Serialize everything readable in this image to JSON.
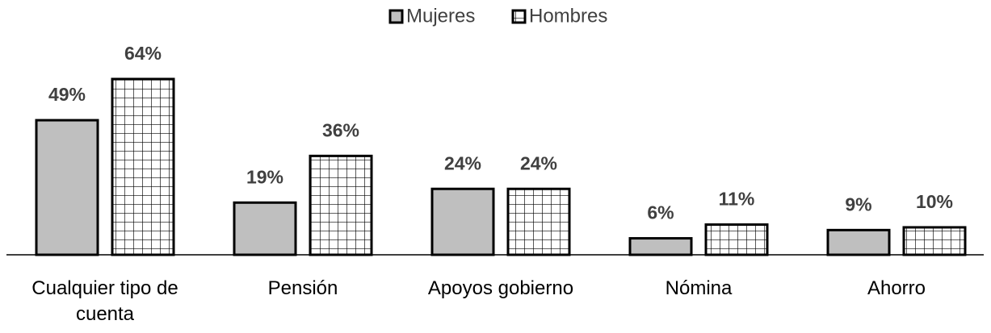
{
  "chart_data": {
    "type": "bar",
    "categories": [
      "Cualquier tipo de cuenta",
      "Pensión",
      "Apoyos gobierno",
      "Nómina",
      "Ahorro"
    ],
    "series": [
      {
        "name": "Mujeres",
        "color": "#bfbfbf",
        "values": [
          49,
          19,
          24,
          6,
          9
        ],
        "value_labels": [
          "49%",
          "19%",
          "24%",
          "6%",
          "9%"
        ]
      },
      {
        "name": "Hombres",
        "color": "#ffffff",
        "pattern": "grid",
        "values": [
          64,
          36,
          24,
          11,
          10
        ],
        "value_labels": [
          "64%",
          "36%",
          "24%",
          "11%",
          "10%"
        ]
      }
    ],
    "legend": "top"
  }
}
